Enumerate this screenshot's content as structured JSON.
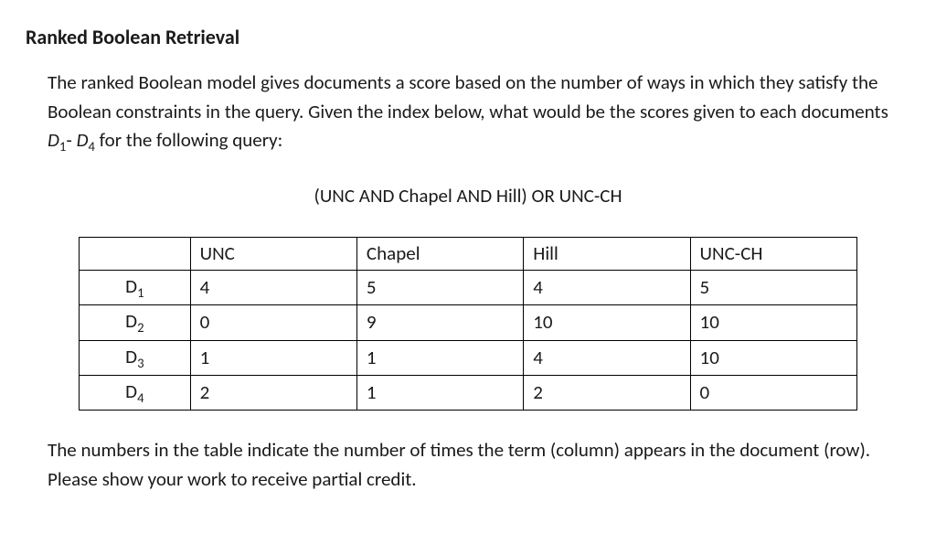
{
  "heading": "Ranked Boolean Retrieval",
  "intro": {
    "text1": "The ranked Boolean model gives documents a score based on the number of ways in which they satisfy the Boolean constraints in the query.  Given the index below, what would be the scores given to each documents ",
    "d1": "D",
    "sub1": "1",
    "sep": "- ",
    "d4": "D",
    "sub4": "4",
    "text2": " for the following query:"
  },
  "query": "(UNC AND Chapel AND Hill) OR UNC-CH",
  "table": {
    "columns": [
      "UNC",
      "Chapel",
      "Hill",
      "UNC-CH"
    ],
    "rows": [
      {
        "label": "D",
        "sub": "1",
        "cells": [
          "4",
          "5",
          "4",
          "5"
        ]
      },
      {
        "label": "D",
        "sub": "2",
        "cells": [
          "0",
          "9",
          "10",
          "10"
        ]
      },
      {
        "label": "D",
        "sub": "3",
        "cells": [
          "1",
          "1",
          "4",
          "10"
        ]
      },
      {
        "label": "D",
        "sub": "4",
        "cells": [
          "2",
          "1",
          "2",
          "0"
        ]
      }
    ],
    "border_color": "#000000",
    "background_color": "#ffffff",
    "font_size": 21
  },
  "note": "The numbers in the table indicate the number of times the term (column) appears in the document (row). Please show your work to receive partial credit."
}
